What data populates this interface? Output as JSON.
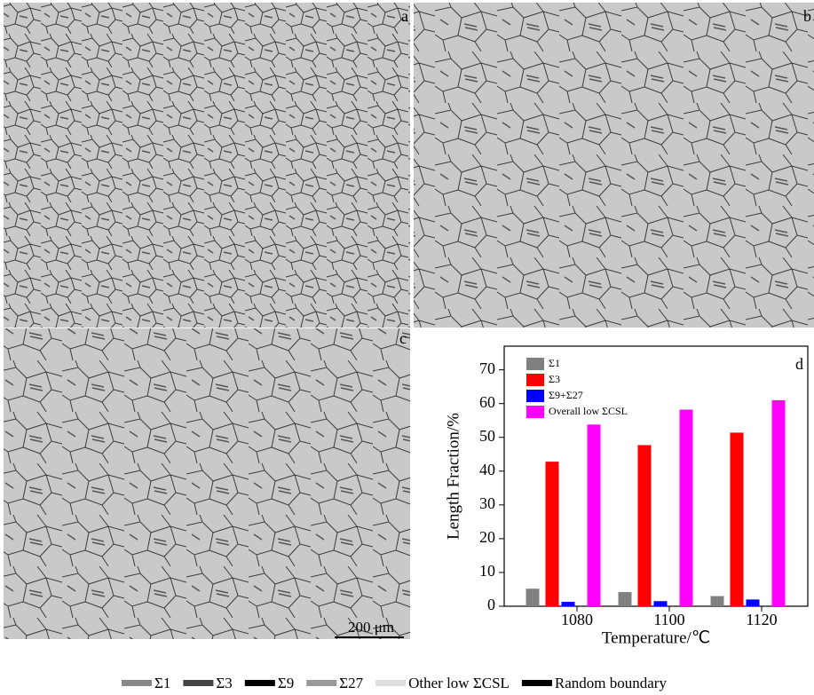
{
  "micrographs": {
    "panels": [
      {
        "label": "a"
      },
      {
        "label": "b"
      },
      {
        "label": "c"
      }
    ],
    "scale_bar": "200 μm",
    "legend": [
      {
        "name": "Σ1",
        "color": "#888888"
      },
      {
        "name": "Σ3",
        "color": "#444444"
      },
      {
        "name": "Σ9",
        "color": "#000000"
      },
      {
        "name": "Σ27",
        "color": "#999999"
      },
      {
        "name": "Other low ΣCSL",
        "color": "#dddddd"
      },
      {
        "name": "Random boundary",
        "color": "#000000"
      }
    ]
  },
  "chart_data": {
    "type": "bar",
    "panel_label": "d",
    "x_label": "Temperature/℃",
    "y_label": "Length Fraction/%",
    "categories": [
      "1080",
      "1100",
      "1120"
    ],
    "series": [
      {
        "name": "Σ1",
        "color": "#808080",
        "values": [
          5.2,
          4.2,
          3.0
        ]
      },
      {
        "name": "Σ3",
        "color": "#ff0000",
        "values": [
          42.8,
          47.7,
          51.4
        ]
      },
      {
        "name": "Σ9+Σ27",
        "color": "#0000ff",
        "values": [
          1.3,
          1.5,
          2.0
        ]
      },
      {
        "name": "Overall low ΣCSL",
        "color": "#ff00ff",
        "values": [
          53.8,
          58.2,
          61.0
        ]
      }
    ],
    "ylim": [
      0,
      77
    ],
    "yticks": [
      0,
      10,
      20,
      30,
      40,
      50,
      60,
      70
    ],
    "legend": "upper-left"
  }
}
